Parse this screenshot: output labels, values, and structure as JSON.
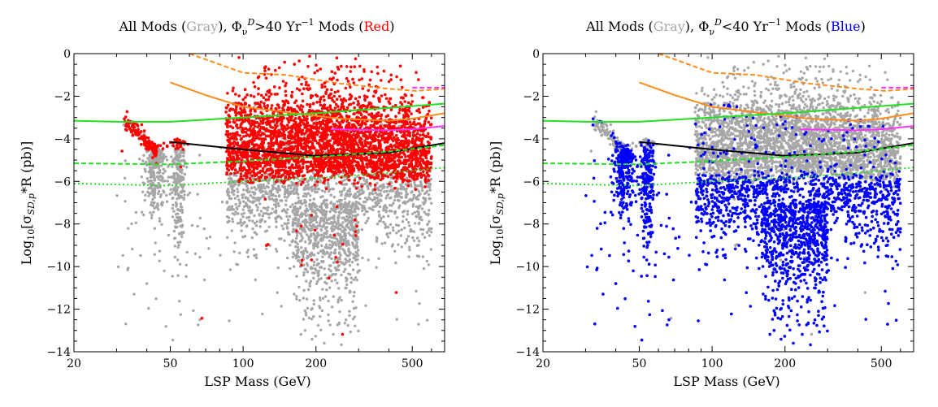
{
  "chart_data": [
    {
      "type": "scatter",
      "title_parts": {
        "pre": "All Mods (",
        "gray": "Gray",
        "mid1": "), ",
        "phi": "Φ",
        "sub": "ν",
        "sup": "D",
        "cond": ">40 Yr",
        "exp": "−1",
        "post": " Mods (",
        "hl": "Red",
        "end": ")"
      },
      "xlabel": "LSP Mass (GeV)",
      "ylabel": {
        "pre": "Log",
        "sub10": "10",
        "br": "[σ",
        "subsd": "SD,p",
        "post": "*R (pb)]"
      },
      "xscale": "log",
      "xlim": [
        20,
        680
      ],
      "ylim": [
        -14,
        0
      ],
      "xticks": [
        20,
        50,
        100,
        200,
        500
      ],
      "xtick_labels": [
        "20",
        "50",
        "100",
        "200",
        "500"
      ],
      "yticks": [
        0,
        -2,
        -4,
        -6,
        -8,
        -10,
        -12,
        -14
      ],
      "ytick_labels": [
        "0",
        "−2",
        "−4",
        "−6",
        "−8",
        "−10",
        "−12",
        "−14"
      ],
      "series": [
        {
          "name": "All Mods",
          "color": "#a6a6a6",
          "kind": "points"
        },
        {
          "name": "Φ_ν^D > 40 Yr^-1 Mods",
          "color": "#ff0000",
          "kind": "points"
        }
      ],
      "highlight": "high",
      "limit_curves": [
        {
          "name": "orange-dashed",
          "color": "#ff8c1a",
          "style": "dashed",
          "x": [
            60,
            100,
            150,
            250,
            400,
            520,
            680
          ],
          "y": [
            0,
            -0.9,
            -1.0,
            -1.4,
            -1.65,
            -1.75,
            -1.65
          ]
        },
        {
          "name": "orange-solid",
          "color": "#ff8c1a",
          "style": "solid",
          "x": [
            50,
            70,
            100,
            150,
            250,
            400,
            500,
            680
          ],
          "y": [
            -1.35,
            -1.95,
            -2.5,
            -2.75,
            -3.05,
            -3.15,
            -3.05,
            -2.8
          ]
        },
        {
          "name": "green-solid",
          "color": "#22e022",
          "style": "solid",
          "x": [
            20,
            30,
            50,
            100,
            200,
            400,
            680
          ],
          "y": [
            -3.15,
            -3.2,
            -3.2,
            -3.0,
            -2.8,
            -2.55,
            -2.35
          ]
        },
        {
          "name": "magenta-solid",
          "color": "#ff33ff",
          "style": "solid",
          "x": [
            230,
            400,
            500,
            680
          ],
          "y": [
            -3.55,
            -3.6,
            -3.55,
            -3.4
          ]
        },
        {
          "name": "magenta-dashed",
          "color": "#ff33ff",
          "style": "dashed",
          "x": [
            500,
            680
          ],
          "y": [
            -1.6,
            -1.6
          ]
        },
        {
          "name": "black-solid",
          "color": "#000000",
          "style": "solid",
          "x": [
            50,
            100,
            200,
            400,
            680
          ],
          "y": [
            -4.15,
            -4.5,
            -4.8,
            -4.65,
            -4.2
          ]
        },
        {
          "name": "green-dashed",
          "color": "#22e022",
          "style": "dashed",
          "x": [
            20,
            50,
            100,
            200,
            400,
            680
          ],
          "y": [
            -5.15,
            -5.2,
            -5.05,
            -4.85,
            -4.6,
            -4.3
          ]
        },
        {
          "name": "green-dotted",
          "color": "#22e022",
          "style": "dotted",
          "x": [
            20,
            50,
            100,
            200,
            400,
            680
          ],
          "y": [
            -6.1,
            -6.2,
            -6.0,
            -5.85,
            -5.6,
            -5.35
          ]
        }
      ]
    },
    {
      "type": "scatter",
      "title_parts": {
        "pre": "All Mods (",
        "gray": "Gray",
        "mid1": "), ",
        "phi": "Φ",
        "sub": "ν",
        "sup": "D",
        "cond": "<40 Yr",
        "exp": "−1",
        "post": " Mods (",
        "hl": "Blue",
        "end": ")"
      },
      "xlabel": "LSP Mass (GeV)",
      "ylabel": {
        "pre": "Log",
        "sub10": "10",
        "br": "[σ",
        "subsd": "SD,p",
        "post": "*R (pb)]"
      },
      "xscale": "log",
      "xlim": [
        20,
        680
      ],
      "ylim": [
        -14,
        0
      ],
      "xticks": [
        20,
        50,
        100,
        200,
        500
      ],
      "xtick_labels": [
        "20",
        "50",
        "100",
        "200",
        "500"
      ],
      "yticks": [
        0,
        -2,
        -4,
        -6,
        -8,
        -10,
        -12,
        -14
      ],
      "ytick_labels": [
        "0",
        "−2",
        "−4",
        "−6",
        "−8",
        "−10",
        "−12",
        "−14"
      ],
      "series": [
        {
          "name": "All Mods",
          "color": "#a6a6a6",
          "kind": "points"
        },
        {
          "name": "Φ_ν^D < 40 Yr^-1 Mods",
          "color": "#0000ff",
          "kind": "points"
        }
      ],
      "highlight": "low",
      "limit_curves": [
        {
          "name": "orange-dashed",
          "color": "#ff8c1a",
          "style": "dashed",
          "x": [
            60,
            100,
            150,
            250,
            400,
            520,
            680
          ],
          "y": [
            0,
            -0.9,
            -1.0,
            -1.4,
            -1.65,
            -1.75,
            -1.65
          ]
        },
        {
          "name": "orange-solid",
          "color": "#ff8c1a",
          "style": "solid",
          "x": [
            50,
            70,
            100,
            150,
            250,
            400,
            500,
            680
          ],
          "y": [
            -1.35,
            -1.95,
            -2.5,
            -2.75,
            -3.05,
            -3.15,
            -3.05,
            -2.8
          ]
        },
        {
          "name": "green-solid",
          "color": "#22e022",
          "style": "solid",
          "x": [
            20,
            30,
            50,
            100,
            200,
            400,
            680
          ],
          "y": [
            -3.15,
            -3.2,
            -3.2,
            -3.0,
            -2.8,
            -2.55,
            -2.35
          ]
        },
        {
          "name": "magenta-solid",
          "color": "#ff33ff",
          "style": "solid",
          "x": [
            230,
            400,
            500,
            680
          ],
          "y": [
            -3.55,
            -3.6,
            -3.55,
            -3.4
          ]
        },
        {
          "name": "magenta-dashed",
          "color": "#ff33ff",
          "style": "dashed",
          "x": [
            500,
            680
          ],
          "y": [
            -1.6,
            -1.6
          ]
        },
        {
          "name": "black-solid",
          "color": "#000000",
          "style": "solid",
          "x": [
            50,
            100,
            200,
            400,
            680
          ],
          "y": [
            -4.15,
            -4.5,
            -4.8,
            -4.65,
            -4.2
          ]
        },
        {
          "name": "green-dashed",
          "color": "#22e022",
          "style": "dashed",
          "x": [
            20,
            50,
            100,
            200,
            400,
            680
          ],
          "y": [
            -5.15,
            -5.2,
            -5.05,
            -4.85,
            -4.6,
            -4.3
          ]
        },
        {
          "name": "green-dotted",
          "color": "#22e022",
          "style": "dotted",
          "x": [
            20,
            50,
            100,
            200,
            400,
            680
          ],
          "y": [
            -6.1,
            -6.2,
            -6.0,
            -5.85,
            -5.6,
            -5.35
          ]
        }
      ]
    }
  ]
}
